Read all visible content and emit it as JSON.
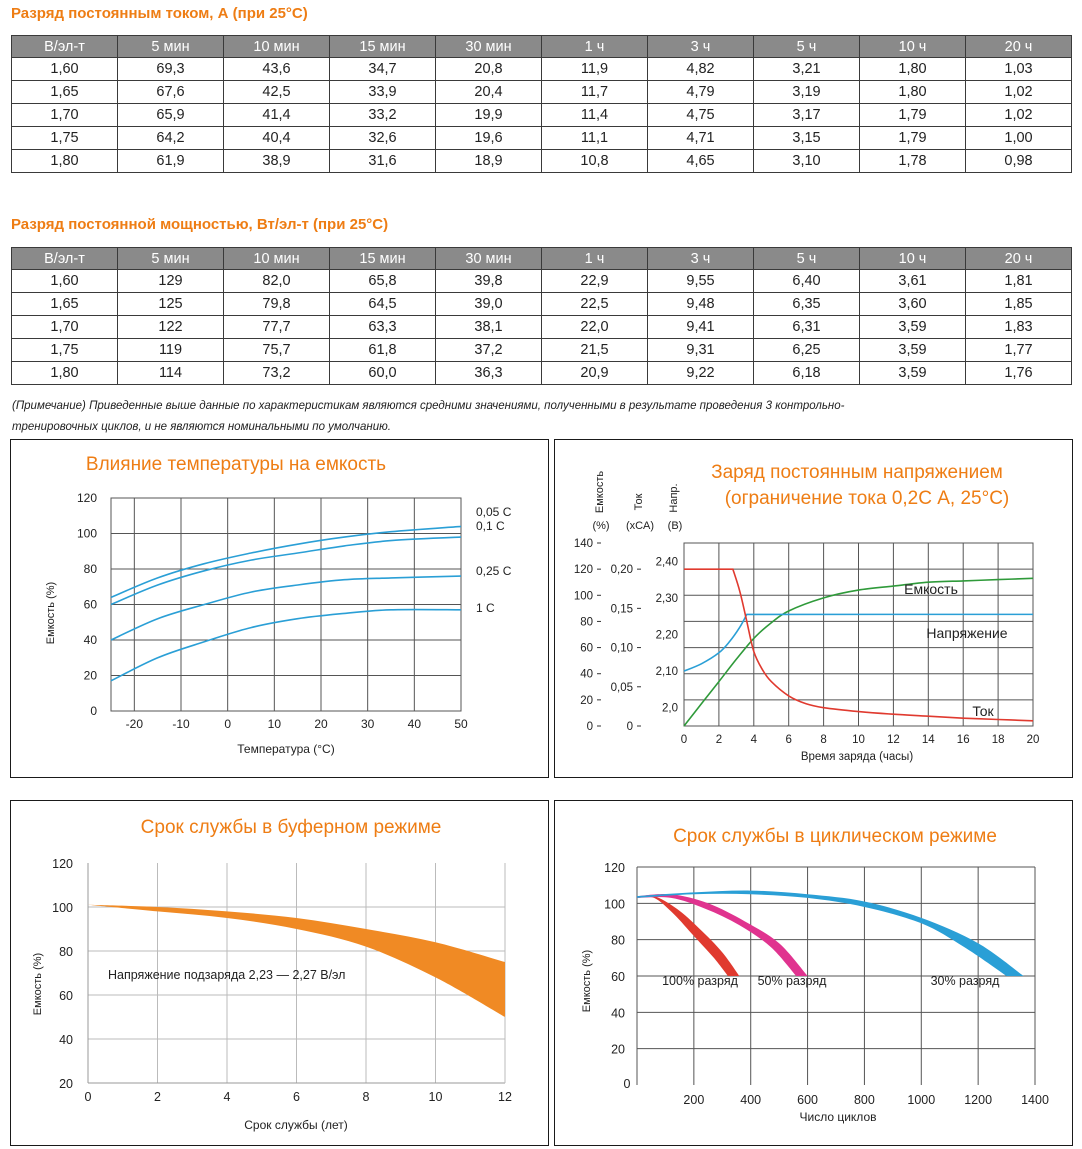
{
  "table1": {
    "title": "Разряд постоянным током, А (при 25°С)",
    "headers": [
      "В/эл-т",
      "5 мин",
      "10 мин",
      "15 мин",
      "30 мин",
      "1 ч",
      "3 ч",
      "5 ч",
      "10 ч",
      "20 ч"
    ],
    "rows": [
      [
        "1,60",
        "69,3",
        "43,6",
        "34,7",
        "20,8",
        "11,9",
        "4,82",
        "3,21",
        "1,80",
        "1,03"
      ],
      [
        "1,65",
        "67,6",
        "42,5",
        "33,9",
        "20,4",
        "11,7",
        "4,79",
        "3,19",
        "1,80",
        "1,02"
      ],
      [
        "1,70",
        "65,9",
        "41,4",
        "33,2",
        "19,9",
        "11,4",
        "4,75",
        "3,17",
        "1,79",
        "1,02"
      ],
      [
        "1,75",
        "64,2",
        "40,4",
        "32,6",
        "19,6",
        "11,1",
        "4,71",
        "3,15",
        "1,79",
        "1,00"
      ],
      [
        "1,80",
        "61,9",
        "38,9",
        "31,6",
        "18,9",
        "10,8",
        "4,65",
        "3,10",
        "1,78",
        "0,98"
      ]
    ]
  },
  "table2": {
    "title": "Разряд постоянной мощностью, Вт/эл-т (при 25°С)",
    "headers": [
      "В/эл-т",
      "5 мин",
      "10 мин",
      "15 мин",
      "30 мин",
      "1 ч",
      "3 ч",
      "5 ч",
      "10 ч",
      "20 ч"
    ],
    "rows": [
      [
        "1,60",
        "129",
        "82,0",
        "65,8",
        "39,8",
        "22,9",
        "9,55",
        "6,40",
        "3,61",
        "1,81"
      ],
      [
        "1,65",
        "125",
        "79,8",
        "64,5",
        "39,0",
        "22,5",
        "9,48",
        "6,35",
        "3,60",
        "1,85"
      ],
      [
        "1,70",
        "122",
        "77,7",
        "63,3",
        "38,1",
        "22,0",
        "9,41",
        "6,31",
        "3,59",
        "1,83"
      ],
      [
        "1,75",
        "119",
        "75,7",
        "61,8",
        "37,2",
        "21,5",
        "9,31",
        "6,25",
        "3,59",
        "1,77"
      ],
      [
        "1,80",
        "114",
        "73,2",
        "60,0",
        "36,3",
        "20,9",
        "9,22",
        "6,18",
        "3,59",
        "1,76"
      ]
    ]
  },
  "note": {
    "line1": "(Примечание) Приведенные выше данные по характеристикам являются средними значениями, полученными в результате проведения 3 контрольно-",
    "line2": "тренировочных циклов, и не являются номинальными по умолчанию."
  },
  "colors": {
    "accent": "#ee7d14",
    "blue": "#2a9fd6",
    "red": "#e03a2f",
    "green": "#2f9a3a",
    "magenta": "#e0338f",
    "orange_band": "#f08a24"
  },
  "chart_data": [
    {
      "type": "line",
      "title": "Влияние температуры на емкость",
      "xlabel": "Температура (°C)",
      "ylabel": "Емкость (%)",
      "xlim": [
        -25,
        50
      ],
      "ylim": [
        0,
        120
      ],
      "x_ticks": [
        "-20",
        "-10",
        "0",
        "10",
        "20",
        "30",
        "40",
        "50"
      ],
      "y_ticks": [
        "0",
        "20",
        "40",
        "60",
        "80",
        "100",
        "120"
      ],
      "grid": true,
      "series": [
        {
          "name": "0,05 C",
          "color": "#2a9fd6",
          "x": [
            -25,
            -15,
            -5,
            5,
            15,
            25,
            35,
            50
          ],
          "y": [
            64,
            75,
            83,
            89,
            94,
            98,
            101,
            104
          ]
        },
        {
          "name": "0,1 C",
          "color": "#2a9fd6",
          "x": [
            -25,
            -15,
            -5,
            5,
            15,
            25,
            35,
            50
          ],
          "y": [
            60,
            71,
            79,
            85,
            89,
            93,
            96,
            98
          ]
        },
        {
          "name": "0,25 C",
          "color": "#2a9fd6",
          "x": [
            -25,
            -15,
            -5,
            5,
            15,
            25,
            35,
            50
          ],
          "y": [
            40,
            52,
            60,
            67,
            71,
            74,
            75,
            76
          ]
        },
        {
          "name": "1 C",
          "color": "#2a9fd6",
          "x": [
            -25,
            -15,
            -5,
            5,
            15,
            25,
            35,
            50
          ],
          "y": [
            17,
            30,
            39,
            47,
            52,
            55,
            57,
            57
          ]
        }
      ]
    },
    {
      "type": "line",
      "title_line1": "Заряд постоянным напряжением",
      "title_line2": "(ограничение тока 0,2С А, 25°С)",
      "xlabel": "Время заряда (часы)",
      "xlim": [
        0,
        20
      ],
      "x_ticks": [
        "0",
        "2",
        "4",
        "6",
        "8",
        "10",
        "12",
        "14",
        "16",
        "18",
        "20"
      ],
      "axis_headers": {
        "capacity": "Емкость",
        "current": "Ток",
        "voltage": "Напр."
      },
      "axis_units": {
        "capacity": "(%)",
        "current": "(xCA)",
        "voltage": "(В)"
      },
      "capacity_ticks": [
        "0",
        "20",
        "40",
        "60",
        "80",
        "100",
        "120",
        "140"
      ],
      "current_ticks": [
        "0",
        "0,05",
        "0,10",
        "0,15",
        "0,20"
      ],
      "voltage_ticks": [
        "2,0",
        "2,10",
        "2,20",
        "2,30",
        "2,40"
      ],
      "capacity_range": [
        0,
        140
      ],
      "voltage_range": [
        1.95,
        2.45
      ],
      "grid": true,
      "series": [
        {
          "name": "Емкость",
          "axis": "capacity",
          "color": "#2f9a3a",
          "x": [
            0,
            1,
            2,
            3,
            4,
            5,
            6,
            8,
            10,
            12,
            14,
            16,
            18,
            20
          ],
          "y": [
            0,
            17,
            34,
            51,
            67,
            79,
            88,
            98,
            104,
            107,
            110,
            111,
            112,
            113
          ]
        },
        {
          "name": "Напряжение",
          "axis": "voltage",
          "color": "#2a9fd6",
          "x": [
            0,
            1,
            2,
            2.6,
            3.2,
            3.6,
            20
          ],
          "y": [
            2.1,
            2.12,
            2.15,
            2.18,
            2.22,
            2.255,
            2.255
          ]
        },
        {
          "name": "Ток",
          "axis": "capacity",
          "color": "#e03a2f",
          "x": [
            0,
            2.8,
            3.2,
            3.6,
            4,
            4.5,
            5,
            6,
            7,
            8,
            10,
            12,
            14,
            16,
            18,
            20
          ],
          "y": [
            120,
            120,
            103,
            80,
            57,
            43,
            34,
            23,
            17,
            14,
            11,
            9,
            7.5,
            6,
            5,
            4
          ]
        }
      ]
    },
    {
      "type": "area",
      "title": "Срок службы в буферном режиме",
      "xlabel": "Срок службы (лет)",
      "ylabel": "Емкость (%)",
      "xlim": [
        0,
        12
      ],
      "ylim": [
        20,
        120
      ],
      "x_ticks": [
        "0",
        "2",
        "4",
        "6",
        "8",
        "10",
        "12"
      ],
      "y_ticks": [
        "20",
        "40",
        "60",
        "80",
        "100",
        "120"
      ],
      "annotation": "Напряжение подзаряда 2,23 — 2,27 В/эл",
      "grid": true,
      "series": [
        {
          "name": "upper",
          "x": [
            0,
            2,
            4,
            6,
            8,
            10,
            12
          ],
          "y": [
            101,
            100,
            98,
            95,
            90,
            84,
            75
          ]
        },
        {
          "name": "lower",
          "x": [
            0,
            2,
            4,
            6,
            8,
            10,
            12
          ],
          "y": [
            101,
            98,
            95,
            90,
            82,
            68,
            50
          ]
        }
      ]
    },
    {
      "type": "line",
      "title": "Срок службы в циклическом режиме",
      "xlabel": "Число циклов",
      "ylabel": "Емкость (%)",
      "xlim": [
        0,
        1400
      ],
      "ylim": [
        0,
        120
      ],
      "x_ticks": [
        "0",
        "200",
        "400",
        "600",
        "800",
        "1000",
        "1200",
        "1400"
      ],
      "y_ticks": [
        "20",
        "40",
        "60",
        "80",
        "100",
        "120"
      ],
      "grid": true,
      "series": [
        {
          "name": "100% разряд",
          "color": "#e03a2f",
          "upper": {
            "x": [
              0,
              60,
              140,
              220,
              300,
              360
            ],
            "y": [
              103,
              104,
              97,
              86,
              73,
              60
            ]
          },
          "lower": {
            "x": [
              0,
              60,
              130,
              200,
              270,
              320
            ],
            "y": [
              103,
              103,
              94,
              82,
              70,
              60
            ]
          }
        },
        {
          "name": "50% разряд",
          "color": "#e0338f",
          "upper": {
            "x": [
              0,
              120,
              250,
              380,
              500,
              600
            ],
            "y": [
              104,
              105,
              100,
              90,
              78,
              60
            ]
          },
          "lower": {
            "x": [
              0,
              120,
              240,
              360,
              470,
              560
            ],
            "y": [
              103,
              103,
              97,
              88,
              76,
              60
            ]
          }
        },
        {
          "name": "30% разряд",
          "color": "#2a9fd6",
          "upper": {
            "x": [
              0,
              200,
              400,
              600,
              800,
              1000,
              1200,
              1360
            ],
            "y": [
              104,
              106,
              107,
              105,
              101,
              92,
              78,
              60
            ]
          },
          "lower": {
            "x": [
              0,
              200,
              400,
              600,
              800,
              1000,
              1150,
              1300
            ],
            "y": [
              103,
              105,
              105,
              103,
              98,
              89,
              76,
              60
            ]
          }
        }
      ]
    }
  ]
}
